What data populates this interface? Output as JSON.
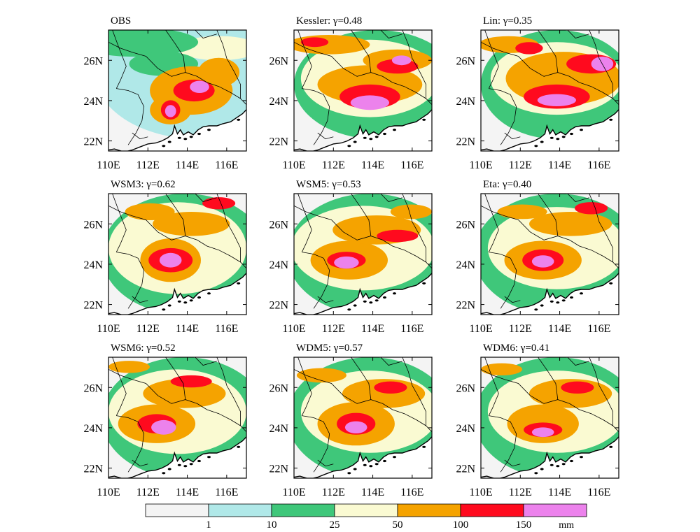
{
  "chart_data": {
    "type": "heatmap",
    "xticks": [
      "110E",
      "112E",
      "114E",
      "116E"
    ],
    "yticks": [
      "22N",
      "24N",
      "26N"
    ],
    "xlim": [
      110,
      117
    ],
    "ylim": [
      21.5,
      27.5
    ],
    "panels": [
      {
        "title": "OBS",
        "gamma": null
      },
      {
        "title": "Kessler: γ=0.48",
        "gamma": 0.48
      },
      {
        "title": "Lin: γ=0.35",
        "gamma": 0.35
      },
      {
        "title": "WSM3: γ=0.62",
        "gamma": 0.62
      },
      {
        "title": "WSM5: γ=0.53",
        "gamma": 0.53
      },
      {
        "title": "Eta: γ=0.40",
        "gamma": 0.4
      },
      {
        "title": "WSM6: γ=0.52",
        "gamma": 0.52
      },
      {
        "title": "WDM5: γ=0.57",
        "gamma": 0.57
      },
      {
        "title": "WDM6: γ=0.41",
        "gamma": 0.41
      }
    ],
    "colorbar": {
      "levels": [
        "1",
        "10",
        "25",
        "50",
        "100",
        "150"
      ],
      "unit": "mm",
      "colors": [
        "#f4f4f4",
        "#b0e8e8",
        "#3fc77a",
        "#fafad2",
        "#f5a300",
        "#ff0a1e",
        "#ec82ec"
      ]
    },
    "ocean_color": "#ffffff",
    "boundary_color": "#000000"
  }
}
